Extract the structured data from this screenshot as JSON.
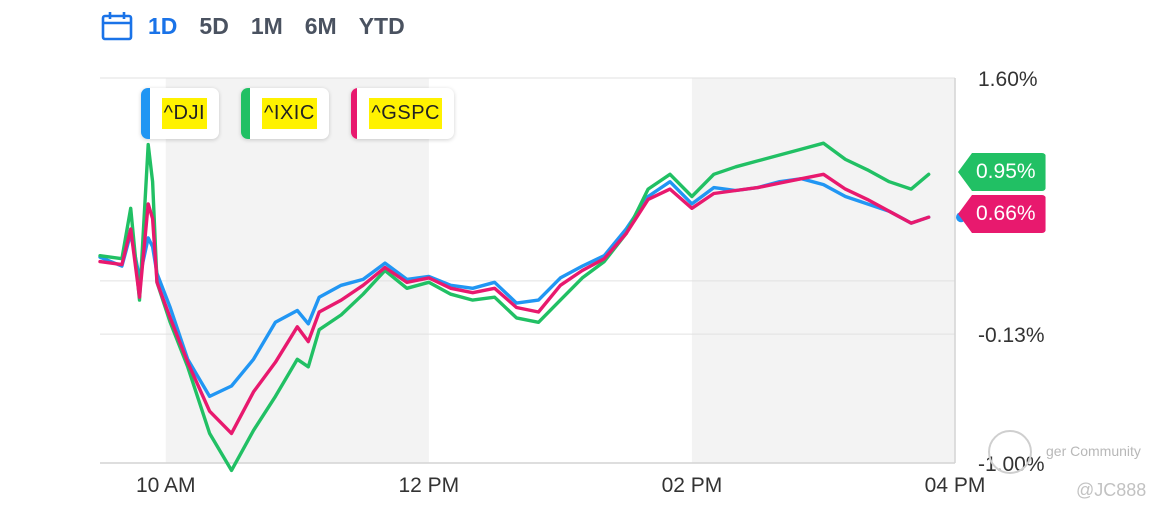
{
  "timeframe": {
    "tabs": [
      "1D",
      "5D",
      "1M",
      "6M",
      "YTD"
    ],
    "active": "1D",
    "calendar_icon": "calendar-icon"
  },
  "legend": [
    {
      "name": "^DJI",
      "color": "#2196f3"
    },
    {
      "name": "^IXIC",
      "color": "#21c064"
    },
    {
      "name": "^GSPC",
      "color": "#e8196e"
    }
  ],
  "end_labels": {
    "ixic": "0.95%",
    "gspc": "0.66%"
  },
  "watermark": {
    "community": "ger Community",
    "handle": "@JC888"
  },
  "chart_data": {
    "type": "line",
    "x_ticks": [
      "10 AM",
      "12 PM",
      "02 PM",
      "04 PM"
    ],
    "y_ticks": [
      "1.60%",
      "-0.13%",
      "-1.00%"
    ],
    "ylim": [
      -1.0,
      1.6
    ],
    "x": [
      0,
      10,
      14,
      18,
      22,
      24,
      26,
      32,
      40,
      50,
      60,
      70,
      80,
      90,
      95,
      100,
      110,
      120,
      130,
      140,
      150,
      160,
      170,
      180,
      190,
      200,
      210,
      220,
      230,
      240,
      250,
      260,
      270,
      280,
      290,
      300,
      310,
      320,
      330,
      340,
      350,
      360,
      370,
      378
    ],
    "series": [
      {
        "name": "^DJI",
        "color": "#2196f3",
        "values": [
          0.39,
          0.33,
          0.55,
          0.25,
          0.52,
          0.46,
          0.28,
          0.05,
          -0.3,
          -0.55,
          -0.48,
          -0.3,
          -0.05,
          0.03,
          -0.06,
          0.12,
          0.2,
          0.24,
          0.35,
          0.24,
          0.26,
          0.2,
          0.18,
          0.22,
          0.08,
          0.1,
          0.25,
          0.33,
          0.4,
          0.58,
          0.8,
          0.9,
          0.75,
          0.86,
          0.84,
          0.86,
          0.9,
          0.92,
          0.88,
          0.8,
          0.75,
          0.7,
          0.62,
          0.66
        ]
      },
      {
        "name": "^IXIC",
        "color": "#21c064",
        "values": [
          0.4,
          0.38,
          0.72,
          0.1,
          1.15,
          0.9,
          0.22,
          -0.05,
          -0.35,
          -0.8,
          -1.05,
          -0.78,
          -0.55,
          -0.3,
          -0.35,
          -0.1,
          0.0,
          0.14,
          0.3,
          0.18,
          0.22,
          0.14,
          0.1,
          0.12,
          -0.02,
          -0.05,
          0.1,
          0.25,
          0.36,
          0.55,
          0.85,
          0.95,
          0.8,
          0.95,
          1.0,
          1.04,
          1.08,
          1.12,
          1.16,
          1.05,
          0.98,
          0.9,
          0.85,
          0.95
        ]
      },
      {
        "name": "^GSPC",
        "color": "#e8196e",
        "values": [
          0.36,
          0.34,
          0.58,
          0.12,
          0.75,
          0.65,
          0.22,
          -0.02,
          -0.32,
          -0.65,
          -0.8,
          -0.52,
          -0.32,
          -0.08,
          -0.18,
          0.02,
          0.1,
          0.2,
          0.32,
          0.22,
          0.25,
          0.18,
          0.15,
          0.18,
          0.05,
          0.02,
          0.2,
          0.3,
          0.38,
          0.55,
          0.78,
          0.85,
          0.72,
          0.82,
          0.84,
          0.86,
          0.89,
          0.92,
          0.95,
          0.85,
          0.78,
          0.7,
          0.62,
          0.66
        ]
      }
    ]
  }
}
